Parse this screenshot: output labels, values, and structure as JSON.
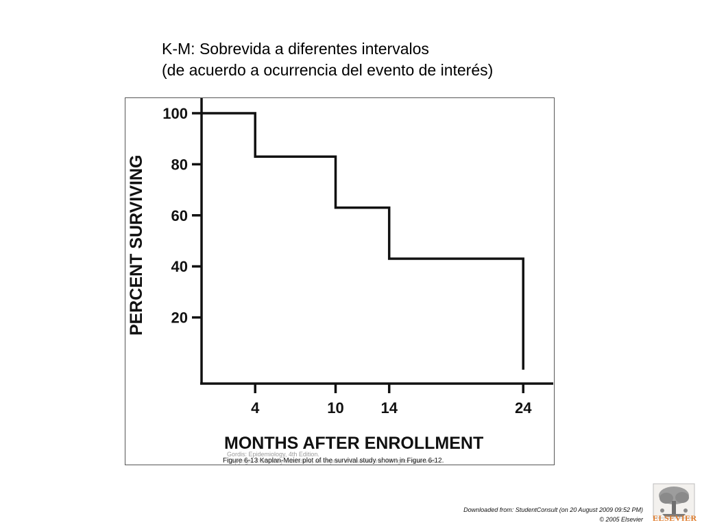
{
  "title": {
    "line1": "K-M: Sobrevida a diferentes intervalos",
    "line2": "(de acuerdo a ocurrencia del evento de interés)"
  },
  "chart_data": {
    "type": "line",
    "step": true,
    "xlabel": "MONTHS AFTER ENROLLMENT",
    "ylabel": "PERCENT SURVIVING",
    "xticks": [
      4,
      10,
      14,
      24
    ],
    "yticks": [
      20,
      40,
      60,
      80,
      100
    ],
    "xlim": [
      0,
      26
    ],
    "ylim": [
      0,
      100
    ],
    "series": [
      {
        "x": [
          0,
          4,
          4,
          10,
          10,
          14,
          14,
          24,
          24
        ],
        "y": [
          100,
          100,
          83,
          83,
          63,
          63,
          43,
          43,
          0
        ]
      }
    ],
    "grid": false,
    "color": "#111111"
  },
  "figure": {
    "credit": "Gordis: Epidemiology, 4th Edition.",
    "caption": "Figure 6-13 Kaplan-Meier plot of the survival study shown in Figure 6-12.",
    "faded_text": "Copyright © 2008 by Saunders, an imprint of Elsevier Inc. All rights reserved."
  },
  "footer": {
    "downloaded": "Downloaded from: StudentConsult (on 20 August 2009 09:52 PM)",
    "copyright": "© 2005 Elsevier",
    "logo_text": "ELSEVIER",
    "logo_color": "#e07b2a"
  }
}
